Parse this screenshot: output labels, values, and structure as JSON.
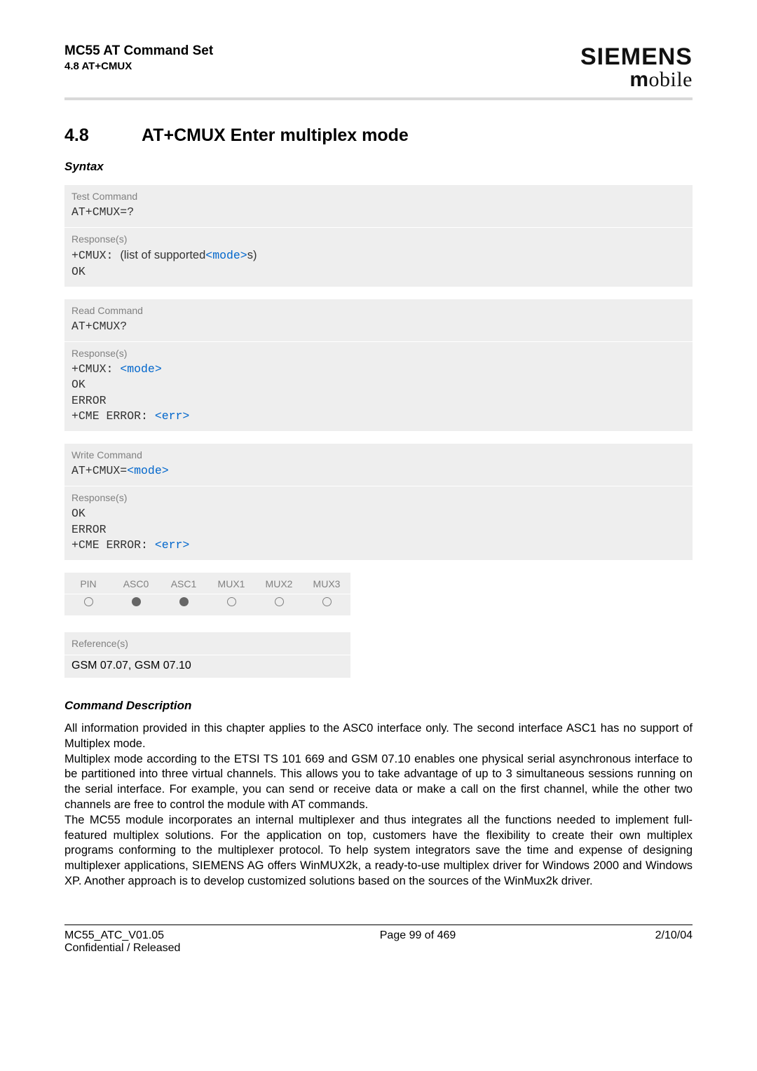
{
  "header": {
    "doc_title": "MC55 AT Command Set",
    "doc_subtitle": "4.8 AT+CMUX",
    "brand_top": "SIEMENS",
    "brand_bottom_m": "m",
    "brand_bottom_rest": "obile"
  },
  "section": {
    "number": "4.8",
    "title": "AT+CMUX   Enter multiplex mode"
  },
  "syntax_label": "Syntax",
  "boxes": {
    "test": {
      "label": "Test Command",
      "cmd": "AT+CMUX=?",
      "resp_label": "Response(s)",
      "resp_prefix": "+CMUX: ",
      "resp_mid_open": "(list of supported",
      "resp_param": "<mode>",
      "resp_mid_close": "s)",
      "resp_ok": "OK"
    },
    "read": {
      "label": "Read Command",
      "cmd": "AT+CMUX?",
      "resp_label": "Response(s)",
      "resp_prefix": "+CMUX: ",
      "resp_param": "<mode>",
      "resp_ok": "OK",
      "resp_error": "ERROR",
      "resp_cme_prefix": "+CME ERROR: ",
      "resp_cme_param": "<err>"
    },
    "write": {
      "label": "Write Command",
      "cmd_prefix": "AT+CMUX=",
      "cmd_param": "<mode>",
      "resp_label": "Response(s)",
      "resp_ok": "OK",
      "resp_error": "ERROR",
      "resp_cme_prefix": "+CME ERROR: ",
      "resp_cme_param": "<err>"
    }
  },
  "support": {
    "columns": [
      "PIN",
      "ASC0",
      "ASC1",
      "MUX1",
      "MUX2",
      "MUX3"
    ],
    "values": [
      "open",
      "filled",
      "filled",
      "open",
      "open",
      "open"
    ]
  },
  "reference": {
    "label": "Reference(s)",
    "text": "GSM 07.07, GSM 07.10"
  },
  "description": {
    "label": "Command Description",
    "body": "All information provided in this chapter applies to the ASC0 interface only. The second interface ASC1 has no support of Multiplex mode.\nMultiplex mode according to the ETSI TS 101 669 and GSM 07.10 enables one physical serial asynchronous interface to be partitioned into three virtual channels. This allows you to take advantage of up to 3 simultaneous sessions running on the serial interface. For example, you can send or receive data or make a call on the first channel, while the other two channels are free to control the module with AT commands.\nThe MC55 module incorporates an internal multiplexer and thus integrates all the functions needed to implement full-featured multiplex solutions. For the application on top, customers have the flexibility to create their own multiplex programs conforming to the multiplexer protocol. To help system integrators save the time and expense of designing multiplexer applications, SIEMENS AG offers WinMUX2k, a ready-to-use multiplex driver for Windows 2000 and Windows XP. Another approach is to develop customized solutions based on the sources of the WinMux2k driver."
  },
  "footer": {
    "left_line1": "MC55_ATC_V01.05",
    "left_line2": "Confidential / Released",
    "center": "Page 99 of 469",
    "right": "2/10/04"
  }
}
